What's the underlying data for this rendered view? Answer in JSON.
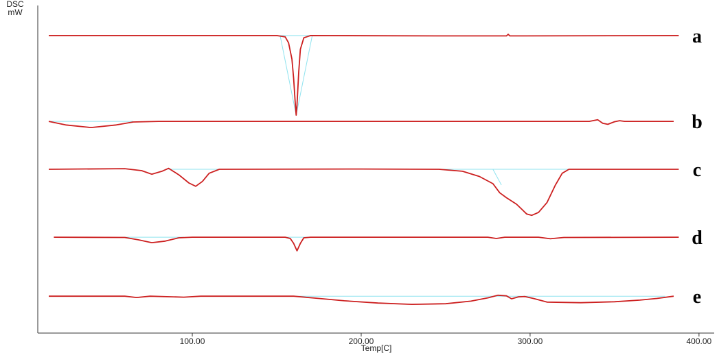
{
  "chart_data": {
    "type": "line",
    "y_label_lines": [
      "DSC",
      "mW"
    ],
    "x_label": "Temp[C]",
    "xlim": [
      8.5,
      409
    ],
    "ylim": [
      0,
      100
    ],
    "xticks": [
      {
        "value": 100,
        "label": "100.00"
      },
      {
        "value": 200,
        "label": "200.00"
      },
      {
        "value": 300,
        "label": "300.00"
      },
      {
        "value": 400,
        "label": "400.00"
      }
    ],
    "baseline_color": "#8fe3ef",
    "series": [
      {
        "name": "a",
        "color": "#cc1f1f",
        "x": [
          15,
          100,
          150,
          155,
          157,
          159,
          160,
          161,
          161.5,
          162,
          163,
          164,
          166,
          170,
          250,
          286,
          287,
          288,
          388
        ],
        "values": [
          91.2,
          91.2,
          91.2,
          90.8,
          89,
          84,
          78,
          70,
          66.8,
          70,
          80,
          87,
          90.5,
          91.2,
          91.1,
          91.1,
          91.6,
          91.1,
          91.2
        ],
        "baseline_x": [
          171,
          152,
          161.5,
          171
        ],
        "baseline_values": [
          91.2,
          91.2,
          66.8,
          91.2
        ]
      },
      {
        "name": "b",
        "color": "#cc1f1f",
        "x": [
          15,
          25,
          40,
          55,
          65,
          80,
          200,
          335,
          340,
          343,
          346,
          350,
          353,
          356,
          385
        ],
        "values": [
          64.9,
          63.8,
          63.0,
          63.8,
          64.7,
          64.9,
          64.9,
          64.9,
          65.4,
          64.3,
          64.0,
          64.8,
          65.1,
          64.9,
          64.9
        ],
        "baseline_x": [
          15,
          65
        ],
        "baseline_values": [
          64.9,
          64.9
        ]
      },
      {
        "name": "c",
        "color": "#cc1f1f",
        "x": [
          15,
          60,
          70,
          76,
          82,
          86,
          92,
          98,
          102,
          106,
          110,
          116,
          200,
          246,
          260,
          270,
          278,
          282,
          286,
          292,
          298,
          301,
          305,
          310,
          315,
          319,
          323,
          388
        ],
        "values": [
          50.2,
          50.4,
          49.8,
          48.7,
          49.6,
          50.5,
          48.5,
          46.0,
          45.0,
          46.5,
          49.0,
          50.2,
          50.3,
          50.2,
          49.6,
          48.0,
          45.8,
          43.0,
          41.5,
          39.5,
          36.5,
          36.1,
          37.0,
          40.0,
          45.4,
          49.0,
          50.2,
          50.2
        ],
        "baseline_x": [
          86,
          116,
          null,
          246,
          330,
          null,
          278,
          283
        ],
        "baseline_values": [
          50.2,
          50.2,
          null,
          50.2,
          50.2,
          null,
          50.2,
          45.4
        ]
      },
      {
        "name": "d",
        "color": "#cc1f1f",
        "x": [
          18,
          60,
          68,
          76,
          84,
          92,
          100,
          155,
          158,
          160,
          162,
          164,
          166,
          170,
          275,
          280,
          285,
          305,
          312,
          320,
          388
        ],
        "values": [
          29.4,
          29.3,
          28.6,
          27.7,
          28.2,
          29.2,
          29.4,
          29.4,
          29.0,
          27.5,
          25.2,
          27.5,
          29.2,
          29.4,
          29.4,
          29.0,
          29.4,
          29.4,
          28.9,
          29.3,
          29.4
        ],
        "baseline_x": [
          58,
          95,
          null,
          155,
          170
        ],
        "baseline_values": [
          29.4,
          29.4,
          null,
          29.4,
          29.4
        ]
      },
      {
        "name": "e",
        "color": "#cc1f1f",
        "x": [
          15,
          60,
          67,
          75,
          95,
          105,
          160,
          175,
          190,
          210,
          230,
          250,
          265,
          275,
          281,
          286,
          289,
          293,
          297,
          302,
          310,
          330,
          350,
          365,
          375,
          385
        ],
        "values": [
          11.3,
          11.3,
          10.9,
          11.3,
          11.0,
          11.3,
          11.3,
          10.6,
          9.9,
          9.2,
          8.8,
          9.0,
          9.8,
          10.8,
          11.6,
          11.4,
          10.5,
          11.1,
          11.2,
          10.6,
          9.5,
          9.3,
          9.6,
          10.1,
          10.6,
          11.3
        ],
        "baseline_x": [
          160,
          380
        ],
        "baseline_values": [
          11.3,
          11.3
        ]
      }
    ]
  }
}
